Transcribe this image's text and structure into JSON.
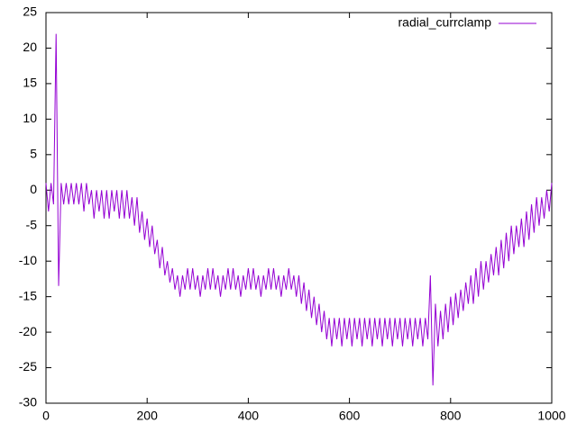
{
  "chart_data": {
    "type": "line",
    "x": [
      0,
      5,
      10,
      15,
      20,
      25,
      30,
      35,
      40,
      45,
      50,
      55,
      60,
      65,
      70,
      75,
      80,
      85,
      90,
      95,
      100,
      105,
      110,
      115,
      120,
      125,
      130,
      135,
      140,
      145,
      150,
      155,
      160,
      165,
      170,
      175,
      180,
      185,
      190,
      195,
      200,
      205,
      210,
      215,
      220,
      225,
      230,
      235,
      240,
      245,
      250,
      255,
      260,
      265,
      270,
      275,
      280,
      285,
      290,
      295,
      300,
      305,
      310,
      315,
      320,
      325,
      330,
      335,
      340,
      345,
      350,
      355,
      360,
      365,
      370,
      375,
      380,
      385,
      390,
      395,
      400,
      405,
      410,
      415,
      420,
      425,
      430,
      435,
      440,
      445,
      450,
      455,
      460,
      465,
      470,
      475,
      480,
      485,
      490,
      495,
      500,
      505,
      510,
      515,
      520,
      525,
      530,
      535,
      540,
      545,
      550,
      555,
      560,
      565,
      570,
      575,
      580,
      585,
      590,
      595,
      600,
      605,
      610,
      615,
      620,
      625,
      630,
      635,
      640,
      645,
      650,
      655,
      660,
      665,
      670,
      675,
      680,
      685,
      690,
      695,
      700,
      705,
      710,
      715,
      720,
      725,
      730,
      735,
      740,
      745,
      750,
      755,
      760,
      765,
      770,
      775,
      780,
      785,
      790,
      795,
      800,
      805,
      810,
      815,
      820,
      825,
      830,
      835,
      840,
      845,
      850,
      855,
      860,
      865,
      870,
      875,
      880,
      885,
      890,
      895,
      900,
      905,
      910,
      915,
      920,
      925,
      930,
      935,
      940,
      945,
      950,
      955,
      960,
      965,
      970,
      975,
      980,
      985,
      990,
      995,
      1000
    ],
    "series": [
      {
        "name": "radial_currclamp",
        "color": "#9400d3",
        "values": [
          1,
          -3,
          1,
          -2,
          22,
          -13.5,
          1,
          -2,
          1,
          -2,
          1,
          -2,
          1,
          -2,
          1,
          -3,
          1,
          -2,
          0,
          -4,
          0,
          -3,
          0,
          -4,
          0,
          -4,
          0,
          -3,
          0,
          -4,
          0,
          -4,
          0,
          -4,
          -1,
          -5,
          -1,
          -6,
          -3,
          -7,
          -4,
          -8,
          -5,
          -9,
          -7,
          -11,
          -8,
          -12,
          -10,
          -13,
          -11,
          -14,
          -12,
          -15,
          -12,
          -14,
          -11,
          -14,
          -11,
          -14,
          -12,
          -15,
          -12,
          -14,
          -11,
          -14,
          -11,
          -14,
          -12,
          -15,
          -12,
          -14,
          -11,
          -14,
          -11,
          -14,
          -12,
          -15,
          -12,
          -14,
          -11,
          -14,
          -11,
          -14,
          -12,
          -15,
          -12,
          -14,
          -11,
          -14,
          -11,
          -14,
          -12,
          -15,
          -12,
          -14,
          -11,
          -14,
          -12,
          -15,
          -12,
          -16,
          -13,
          -17,
          -14,
          -18,
          -15,
          -19,
          -16,
          -20,
          -17,
          -21,
          -18,
          -22,
          -18,
          -21,
          -18,
          -22,
          -18,
          -21,
          -18,
          -22,
          -18,
          -21,
          -18,
          -22,
          -18,
          -21,
          -18,
          -22,
          -18,
          -21,
          -18,
          -22,
          -18,
          -21,
          -18,
          -22,
          -18,
          -21,
          -18,
          -22,
          -18,
          -21,
          -18,
          -22,
          -18,
          -21,
          -18,
          -22,
          -18,
          -21,
          -12,
          -27.5,
          -16,
          -22,
          -17,
          -21,
          -16,
          -20,
          -15,
          -19,
          -14.5,
          -18,
          -14,
          -17,
          -13,
          -16,
          -12,
          -16,
          -11,
          -15,
          -10,
          -14,
          -10,
          -13,
          -9,
          -12,
          -8,
          -12,
          -7,
          -11,
          -6,
          -10,
          -5,
          -9,
          -5,
          -8,
          -4,
          -8,
          -3,
          -7,
          -2,
          -6,
          -1,
          -5,
          -1,
          -4,
          0,
          -3,
          1
        ]
      }
    ],
    "xlim": [
      0,
      1000
    ],
    "xticks": [
      0,
      200,
      400,
      600,
      800,
      1000
    ],
    "ylim": [
      -30,
      25
    ],
    "yticks": [
      -30,
      -25,
      -20,
      -15,
      -10,
      -5,
      0,
      5,
      10,
      15,
      20,
      25
    ],
    "legend": "top-right",
    "grid": false
  }
}
